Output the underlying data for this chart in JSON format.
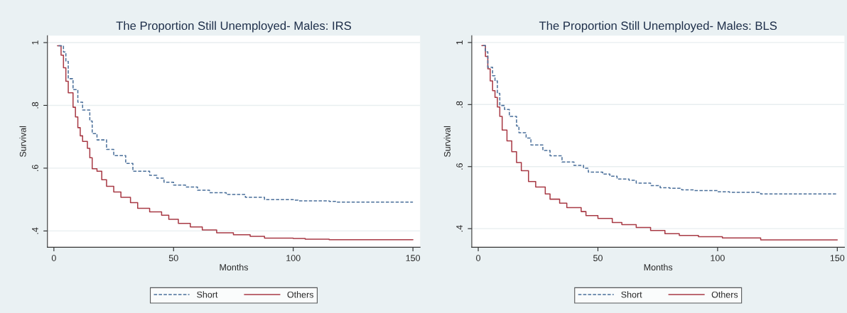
{
  "chart_data": [
    {
      "type": "step",
      "title": "The Proportion Still Unemployed- Males: IRS",
      "xlabel": "Months",
      "ylabel": "Survival",
      "xlim": [
        -2.7,
        153
      ],
      "xticks": [
        0,
        50,
        100,
        150
      ],
      "ylim": [
        0.348,
        1.022
      ],
      "yticks": [
        {
          "value": 0.4,
          "label": ".4"
        },
        {
          "value": 0.6,
          "label": ".6"
        },
        {
          "value": 0.8,
          "label": ".8"
        },
        1
      ],
      "grid": "y",
      "legend": "bottom",
      "series": [
        {
          "name": "Short",
          "color": "#4a6f9a",
          "line_style": "dashed",
          "x": [
            2,
            4,
            5,
            6,
            8,
            10,
            12,
            15,
            16,
            18,
            22,
            25,
            30,
            33,
            40,
            43,
            46,
            50,
            55,
            60,
            65,
            72,
            80,
            88,
            100,
            102,
            115,
            118,
            150
          ],
          "values": [
            0.99,
            0.97,
            0.94,
            0.885,
            0.85,
            0.81,
            0.785,
            0.75,
            0.71,
            0.69,
            0.66,
            0.64,
            0.615,
            0.59,
            0.577,
            0.568,
            0.555,
            0.546,
            0.54,
            0.53,
            0.522,
            0.516,
            0.507,
            0.5,
            0.498,
            0.496,
            0.494,
            0.492,
            0.492
          ]
        },
        {
          "name": "Others",
          "color": "#a83a45",
          "line_style": "solid",
          "x": [
            1.5,
            3,
            4,
            5,
            6,
            8,
            9,
            10,
            11,
            12,
            14,
            15,
            16,
            18,
            20,
            22,
            25,
            28,
            32,
            35,
            40,
            45,
            48,
            52,
            57,
            62,
            68,
            75,
            82,
            88,
            100,
            105,
            115,
            150
          ],
          "values": [
            0.99,
            0.96,
            0.92,
            0.877,
            0.84,
            0.794,
            0.763,
            0.729,
            0.703,
            0.685,
            0.663,
            0.633,
            0.598,
            0.59,
            0.563,
            0.542,
            0.524,
            0.507,
            0.49,
            0.472,
            0.461,
            0.45,
            0.437,
            0.424,
            0.413,
            0.403,
            0.394,
            0.388,
            0.383,
            0.377,
            0.376,
            0.374,
            0.372,
            0.372
          ]
        }
      ]
    },
    {
      "type": "step",
      "title": "The Proportion Still Unemployed- Males: BLS",
      "xlabel": "Months",
      "ylabel": "Survival",
      "xlim": [
        -2.7,
        153
      ],
      "xticks": [
        0,
        50,
        100,
        150
      ],
      "ylim": [
        0.34,
        1.022
      ],
      "yticks": [
        {
          "value": 0.4,
          "label": ".4"
        },
        {
          "value": 0.6,
          "label": ".6"
        },
        {
          "value": 0.8,
          "label": ".8"
        },
        1
      ],
      "grid": "y",
      "legend": "bottom",
      "series": [
        {
          "name": "Short",
          "color": "#4a6f9a",
          "line_style": "dashed",
          "x": [
            2,
            3,
            4,
            6,
            7,
            8,
            9,
            11,
            13,
            16,
            17,
            20,
            22,
            27,
            30,
            35,
            40,
            44,
            46,
            52,
            55,
            58,
            63,
            66,
            72,
            76,
            80,
            85,
            90,
            100,
            105,
            118,
            150
          ],
          "values": [
            0.99,
            0.97,
            0.92,
            0.893,
            0.876,
            0.836,
            0.797,
            0.784,
            0.762,
            0.731,
            0.709,
            0.692,
            0.67,
            0.652,
            0.635,
            0.615,
            0.604,
            0.595,
            0.582,
            0.576,
            0.569,
            0.56,
            0.556,
            0.547,
            0.539,
            0.532,
            0.53,
            0.525,
            0.523,
            0.519,
            0.517,
            0.512,
            0.512
          ]
        },
        {
          "name": "Others",
          "color": "#a83a45",
          "line_style": "solid",
          "x": [
            1.5,
            3,
            4,
            5,
            6,
            7,
            8,
            9,
            10,
            12,
            14,
            16,
            18,
            21,
            24,
            28,
            30,
            34,
            37,
            43,
            45,
            50,
            56,
            60,
            66,
            72,
            78,
            84,
            92,
            102,
            118,
            150
          ],
          "values": [
            0.99,
            0.955,
            0.915,
            0.876,
            0.845,
            0.823,
            0.792,
            0.762,
            0.718,
            0.683,
            0.648,
            0.613,
            0.587,
            0.552,
            0.534,
            0.512,
            0.495,
            0.482,
            0.468,
            0.455,
            0.442,
            0.433,
            0.42,
            0.413,
            0.404,
            0.394,
            0.384,
            0.378,
            0.374,
            0.37,
            0.364,
            0.364
          ]
        }
      ]
    }
  ]
}
